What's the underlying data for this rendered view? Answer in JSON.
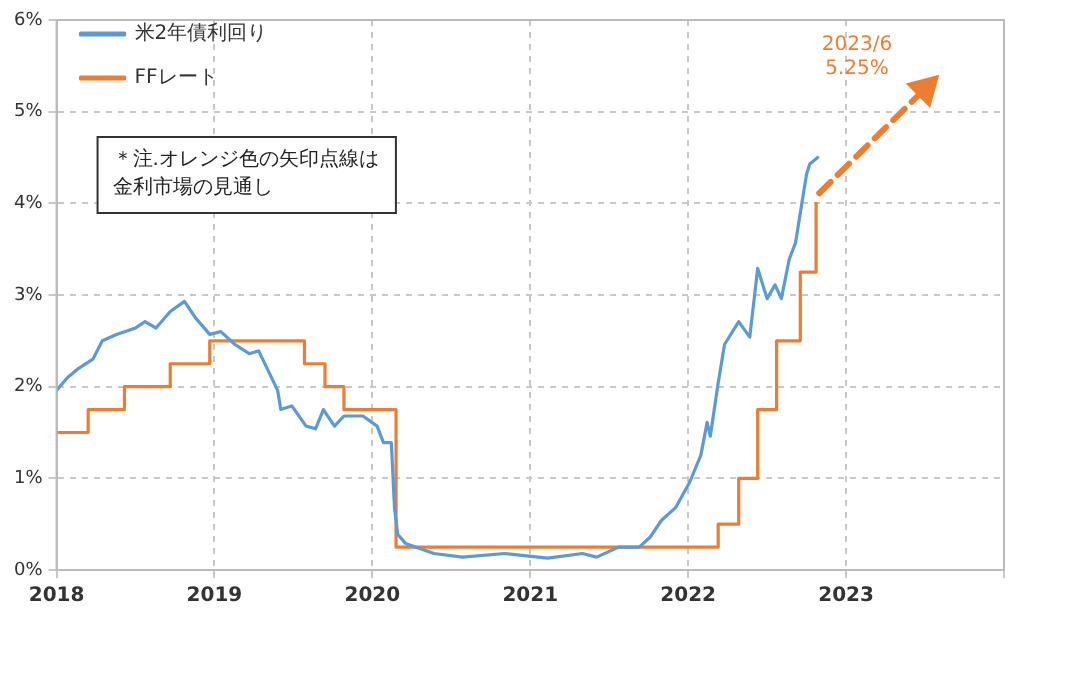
{
  "chart_data": {
    "type": "line",
    "xlim": [
      2018,
      2024
    ],
    "xticks": [
      2018,
      2019,
      2020,
      2021,
      2022,
      2023,
      {
        "value": 2024,
        "label": null
      }
    ],
    "ylim": [
      0,
      6
    ],
    "yticks": [
      {
        "value": 0,
        "label": "0%"
      },
      {
        "value": 1,
        "label": "1%"
      },
      {
        "value": 2,
        "label": "2%"
      },
      {
        "value": 3,
        "label": "3%"
      },
      {
        "value": 4,
        "label": "4%"
      },
      {
        "value": 5,
        "label": "5%"
      },
      {
        "value": 6,
        "label": "6%"
      }
    ],
    "grid": true,
    "legend": "top left",
    "marker": "none",
    "series": [
      {
        "name": "米2年債利回り",
        "type": "line",
        "color": "#5b9bd5",
        "x": [
          2018.0,
          2018.07,
          2018.14,
          2018.23,
          2018.29,
          2018.38,
          2018.5,
          2018.56,
          2018.63,
          2018.72,
          2018.81,
          2018.88,
          2018.97,
          2019.04,
          2019.13,
          2019.22,
          2019.28,
          2019.35,
          2019.4,
          2019.42,
          2019.49,
          2019.58,
          2019.64,
          2019.69,
          2019.76,
          2019.82,
          2019.94,
          2020.03,
          2020.07,
          2020.12,
          2020.14,
          2020.16,
          2020.21,
          2020.39,
          2020.57,
          2020.84,
          2021.11,
          2021.33,
          2021.42,
          2021.56,
          2021.69,
          2021.76,
          2021.83,
          2021.92,
          2022.01,
          2022.08,
          2022.12,
          2022.14,
          2022.19,
          2022.23,
          2022.32,
          2022.39,
          2022.44,
          2022.5,
          2022.55,
          2022.59,
          2022.64,
          2022.68,
          2022.73,
          2022.75,
          2022.77,
          2022.82
        ],
        "values": [
          1.96,
          2.1,
          2.2,
          2.3,
          2.5,
          2.57,
          2.64,
          2.71,
          2.64,
          2.82,
          2.93,
          2.75,
          2.57,
          2.6,
          2.46,
          2.36,
          2.39,
          2.14,
          1.96,
          1.75,
          1.79,
          1.57,
          1.54,
          1.75,
          1.57,
          1.68,
          1.68,
          1.57,
          1.39,
          1.39,
          0.68,
          0.39,
          0.29,
          0.18,
          0.14,
          0.18,
          0.13,
          0.18,
          0.14,
          0.25,
          0.25,
          0.36,
          0.54,
          0.68,
          0.96,
          1.25,
          1.61,
          1.46,
          2.04,
          2.46,
          2.71,
          2.54,
          3.29,
          2.96,
          3.11,
          2.96,
          3.39,
          3.57,
          4.11,
          4.32,
          4.43,
          4.5
        ]
      },
      {
        "name": "FFレート",
        "type": "step",
        "color": "#ed7d31",
        "x": [
          2018.0,
          2018.2,
          2018.43,
          2018.72,
          2018.97,
          2019.57,
          2019.7,
          2019.82,
          2020.15,
          2022.19,
          2022.32,
          2022.44,
          2022.56,
          2022.71,
          2022.81
        ],
        "values": [
          1.5,
          1.75,
          2.0,
          2.25,
          2.5,
          2.25,
          2.0,
          1.75,
          0.25,
          0.5,
          1.0,
          1.75,
          2.5,
          3.25,
          4.0
        ]
      },
      {
        "type": "line",
        "color": "#ed7d31",
        "line_style": "dashed",
        "marker": "triangle",
        "x": [
          2022.83,
          2023.5
        ],
        "values": [
          4.11,
          5.25
        ]
      }
    ],
    "annotations": [
      "＊注.オレンジ色の矢印点線は金利市場の見通し",
      {
        "text": "2023/6\n5.25%",
        "x": 2023.5,
        "y": 5.25
      }
    ]
  }
}
